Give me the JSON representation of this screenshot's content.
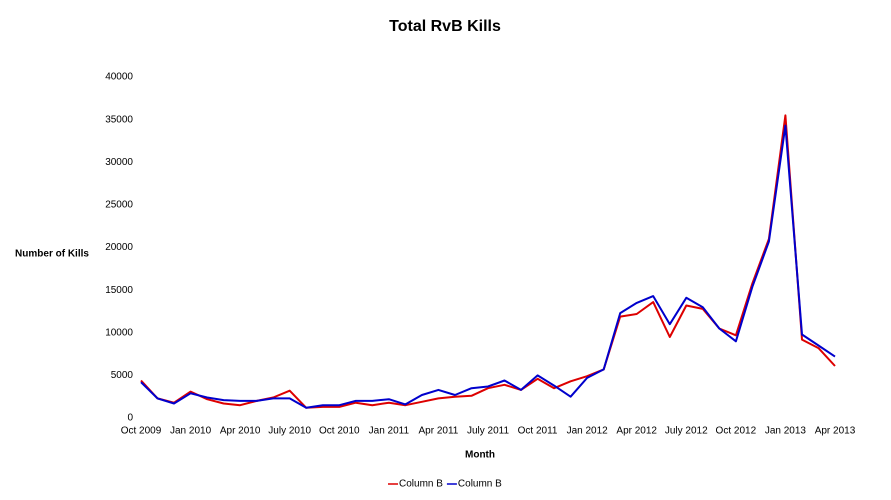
{
  "chart_data": {
    "type": "line",
    "title": "Total RvB Kills",
    "x_label": "Month",
    "y_label": "Number of Kills",
    "categories": [
      "Oct 2009",
      null,
      null,
      "Jan 2010",
      null,
      null,
      "Apr 2010",
      null,
      null,
      "July 2010",
      null,
      null,
      "Oct 2010",
      null,
      null,
      "Jan 2011",
      null,
      null,
      "Apr 2011",
      null,
      null,
      "July 2011",
      null,
      null,
      "Oct 2011",
      null,
      null,
      "Jan 2012",
      null,
      null,
      "Apr 2012",
      null,
      null,
      "July 2012",
      null,
      null,
      "Oct 2012",
      null,
      null,
      "Jan 2013",
      null,
      null,
      "Apr 2013"
    ],
    "series": [
      {
        "name": "Column B",
        "color": "#dd0000",
        "values": [
          4400,
          2300,
          1800,
          3100,
          2200,
          1700,
          1500,
          2000,
          2400,
          3200,
          1200,
          1300,
          1300,
          1800,
          1500,
          1800,
          1500,
          1900,
          2300,
          2500,
          2600,
          3500,
          3900,
          3300,
          4600,
          3500,
          4300,
          4900,
          5700,
          11900,
          12200,
          13600,
          9500,
          13200,
          12800,
          10500,
          9700,
          15800,
          21000,
          35500,
          9200,
          8200,
          6100
        ]
      },
      {
        "name": "Column B",
        "color": "#0000cc",
        "values": [
          4200,
          2300,
          1700,
          2900,
          2400,
          2100,
          2000,
          2000,
          2300,
          2300,
          1200,
          1500,
          1500,
          2000,
          2000,
          2200,
          1600,
          2700,
          3300,
          2700,
          3500,
          3700,
          4400,
          3300,
          5000,
          3800,
          2500,
          4700,
          5700,
          12300,
          13500,
          14300,
          11000,
          14100,
          13000,
          10500,
          9000,
          15400,
          20700,
          34300,
          9800,
          8500,
          7200
        ]
      }
    ],
    "ylim": [
      0,
      40000
    ],
    "yticks": [
      0,
      5000,
      10000,
      15000,
      20000,
      25000,
      30000,
      35000,
      40000
    ],
    "grid": false,
    "legend": "bottom"
  }
}
